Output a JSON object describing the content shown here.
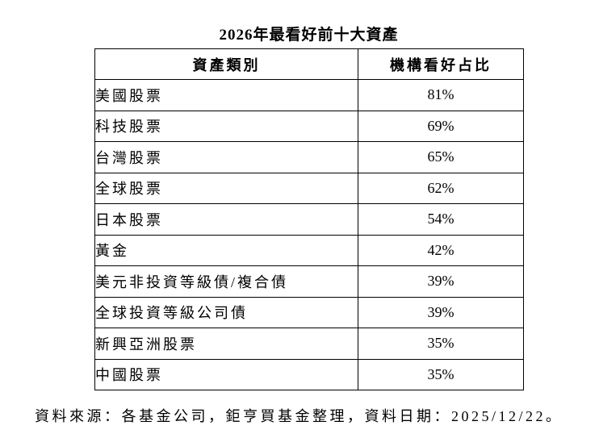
{
  "title": "2026年最看好前十大資產",
  "table": {
    "columns": [
      "資產類別",
      "機構看好占比"
    ],
    "rows": [
      [
        "美國股票",
        "81%"
      ],
      [
        "科技股票",
        "69%"
      ],
      [
        "台灣股票",
        "65%"
      ],
      [
        "全球股票",
        "62%"
      ],
      [
        "日本股票",
        "54%"
      ],
      [
        "黃金",
        "42%"
      ],
      [
        "美元非投資等級債/複合債",
        "39%"
      ],
      [
        "全球投資等級公司債",
        "39%"
      ],
      [
        "新興亞洲股票",
        "35%"
      ],
      [
        "中國股票",
        "35%"
      ]
    ]
  },
  "footer": "資料來源：各基金公司，鉅亨買基金整理，資料日期：2025/12/22。",
  "colors": {
    "background": "#ffffff",
    "text": "#000000",
    "border": "#000000"
  },
  "chart_data": {
    "type": "table",
    "title": "2026年最看好前十大資產",
    "columns": [
      "資產類別",
      "機構看好占比"
    ],
    "categories": [
      "美國股票",
      "科技股票",
      "台灣股票",
      "全球股票",
      "日本股票",
      "黃金",
      "美元非投資等級債/複合債",
      "全球投資等級公司債",
      "新興亞洲股票",
      "中國股票"
    ],
    "values_percent": [
      81,
      69,
      65,
      62,
      54,
      42,
      39,
      39,
      35,
      35
    ],
    "source_note": "資料來源：各基金公司，鉅亨買基金整理，資料日期：2025/12/22。"
  }
}
